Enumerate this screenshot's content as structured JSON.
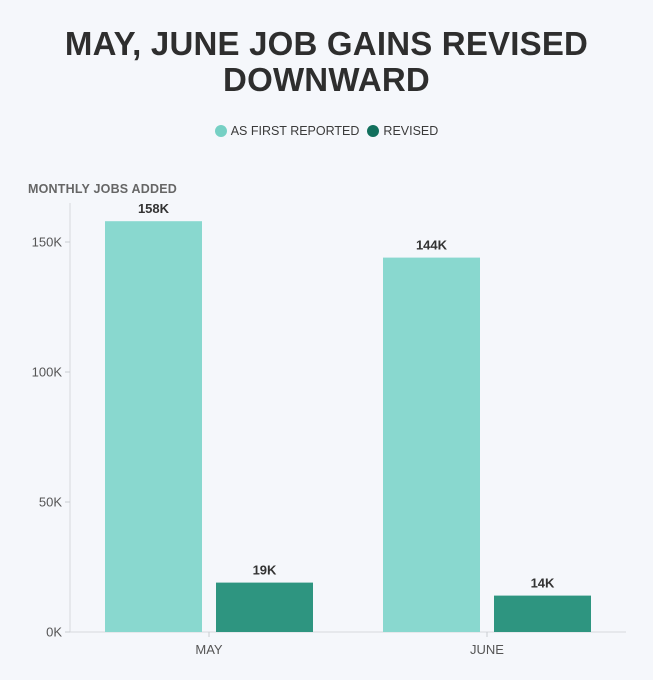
{
  "chart_data": {
    "type": "bar",
    "title": "MAY, JUNE JOB GAINS REVISED DOWNWARD",
    "title_lines": [
      "MAY, JUNE JOB GAINS REVISED",
      "DOWNWARD"
    ],
    "ylabel": "MONTHLY JOBS ADDED",
    "xlabel": "",
    "categories": [
      "MAY",
      "JUNE"
    ],
    "series": [
      {
        "name": "AS FIRST REPORTED",
        "values": [
          158000,
          144000
        ],
        "labels": [
          "158K",
          "144K"
        ],
        "color": "#89d8cf"
      },
      {
        "name": "REVISED",
        "values": [
          19000,
          14000
        ],
        "labels": [
          "19K",
          "14K"
        ],
        "color": "#2e9580"
      }
    ],
    "ylim": [
      0,
      165000
    ],
    "yticks": [
      0,
      50000,
      100000,
      150000
    ],
    "ytick_labels": [
      "0K",
      "50K",
      "100K",
      "150K"
    ],
    "grid": false,
    "legend_position": "top-center"
  },
  "legend": {
    "colors": [
      "#76d0c4",
      "#12705d"
    ]
  }
}
